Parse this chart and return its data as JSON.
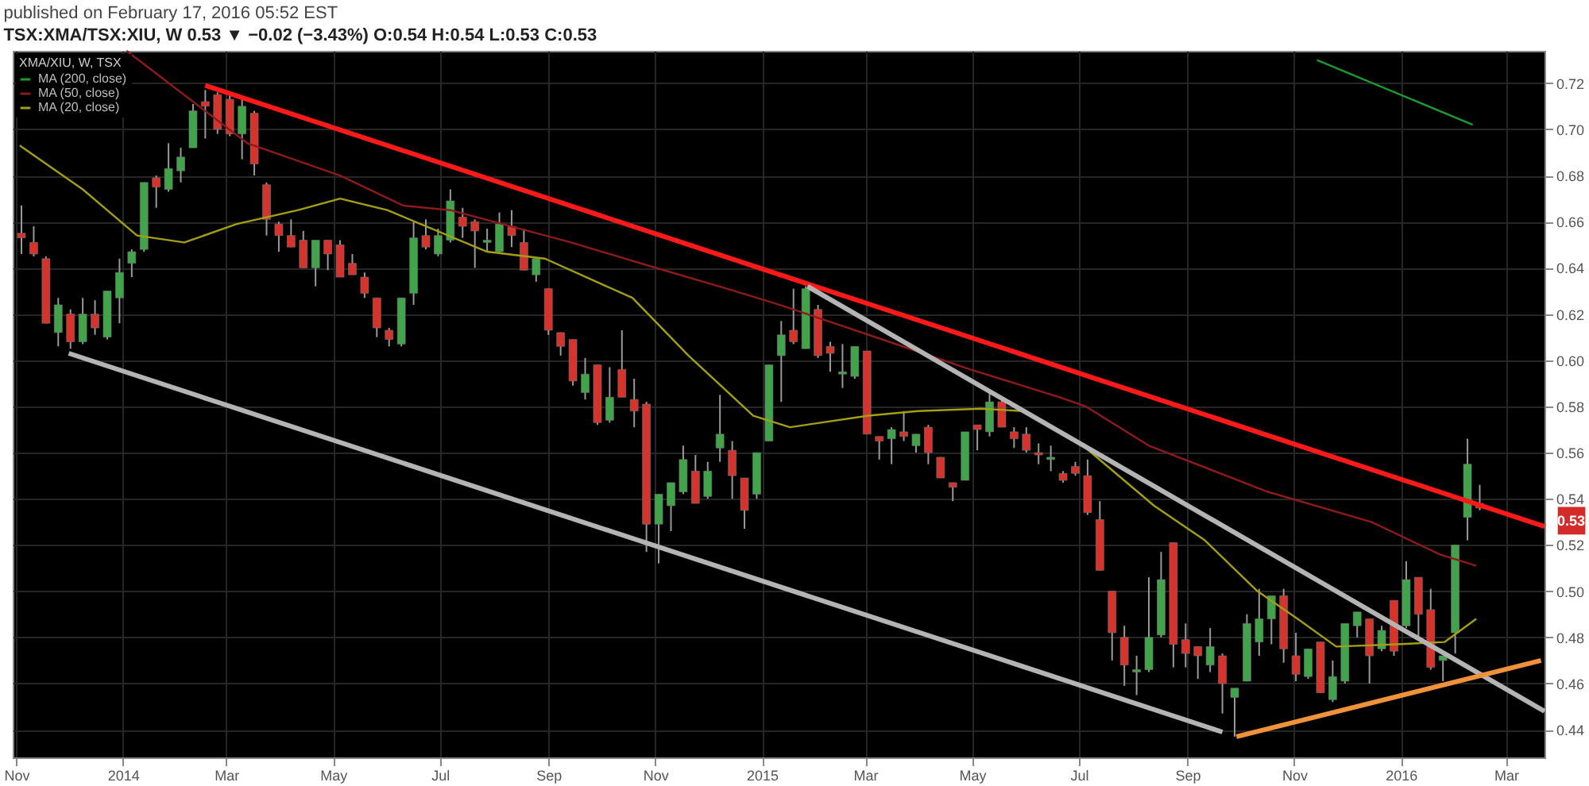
{
  "chart_data": {
    "type": "candlestick",
    "title": "published on February 17, 2016 05:52 EST",
    "subtitle": "TSX:XMA/TSX:XIU, W  0.53 ▼ −0.02 (−3.43%)  O:0.54 H:0.54 L:0.53 C:0.53",
    "legend_title": "XMA/XIU, W, TSX",
    "legend": "top left",
    "grid": true,
    "x": [
      "2013-11-04",
      "2013-11-11",
      "2013-11-18",
      "2013-11-25",
      "2013-12-02",
      "2013-12-09",
      "2013-12-16",
      "2013-12-23",
      "2013-12-30",
      "2014-01-06",
      "2014-01-13",
      "2014-01-20",
      "2014-01-27",
      "2014-02-03",
      "2014-02-10",
      "2014-02-17",
      "2014-02-24",
      "2014-03-03",
      "2014-03-10",
      "2014-03-17",
      "2014-03-24",
      "2014-03-31",
      "2014-04-07",
      "2014-04-14",
      "2014-04-21",
      "2014-04-28",
      "2014-05-05",
      "2014-05-12",
      "2014-05-19",
      "2014-05-26",
      "2014-06-02",
      "2014-06-09",
      "2014-06-16",
      "2014-06-23",
      "2014-06-30",
      "2014-07-07",
      "2014-07-14",
      "2014-07-21",
      "2014-07-28",
      "2014-08-04",
      "2014-08-11",
      "2014-08-18",
      "2014-08-25",
      "2014-09-01",
      "2014-09-08",
      "2014-09-15",
      "2014-09-22",
      "2014-09-29",
      "2014-10-06",
      "2014-10-13",
      "2014-10-20",
      "2014-10-27",
      "2014-11-03",
      "2014-11-10",
      "2014-11-17",
      "2014-11-24",
      "2014-12-01",
      "2014-12-08",
      "2014-12-15",
      "2014-12-22",
      "2014-12-29",
      "2015-01-05",
      "2015-01-12",
      "2015-01-19",
      "2015-01-26",
      "2015-02-02",
      "2015-02-09",
      "2015-02-16",
      "2015-02-23",
      "2015-03-02",
      "2015-03-09",
      "2015-03-16",
      "2015-03-23",
      "2015-03-30",
      "2015-04-06",
      "2015-04-13",
      "2015-04-20",
      "2015-04-27",
      "2015-05-04",
      "2015-05-11",
      "2015-05-18",
      "2015-05-25",
      "2015-06-01",
      "2015-06-08",
      "2015-06-15",
      "2015-06-22",
      "2015-06-29",
      "2015-07-06",
      "2015-07-13",
      "2015-07-20",
      "2015-07-27",
      "2015-08-03",
      "2015-08-10",
      "2015-08-17",
      "2015-08-24",
      "2015-08-31",
      "2015-09-07",
      "2015-09-14",
      "2015-09-21",
      "2015-09-28",
      "2015-10-05",
      "2015-10-12",
      "2015-10-19",
      "2015-10-26",
      "2015-11-02",
      "2015-11-09",
      "2015-11-16",
      "2015-11-23",
      "2015-11-30",
      "2015-12-07",
      "2015-12-14",
      "2015-12-21",
      "2015-12-28",
      "2016-01-04",
      "2016-01-11",
      "2016-01-18",
      "2016-01-25",
      "2016-02-01",
      "2016-02-08",
      "2016-02-15"
    ],
    "ohlc": [
      [
        0.655,
        0.667,
        0.646,
        0.653
      ],
      [
        0.651,
        0.658,
        0.645,
        0.646
      ],
      [
        0.644,
        0.645,
        0.616,
        0.616
      ],
      [
        0.612,
        0.627,
        0.606,
        0.624
      ],
      [
        0.62,
        0.622,
        0.605,
        0.608
      ],
      [
        0.608,
        0.627,
        0.607,
        0.62
      ],
      [
        0.62,
        0.626,
        0.611,
        0.614
      ],
      [
        0.61,
        0.63,
        0.609,
        0.63
      ],
      [
        0.627,
        0.644,
        0.616,
        0.638
      ],
      [
        0.642,
        0.648,
        0.636,
        0.647
      ],
      [
        0.648,
        0.677,
        0.647,
        0.677
      ],
      [
        0.679,
        0.68,
        0.666,
        0.675
      ],
      [
        0.674,
        0.694,
        0.673,
        0.683
      ],
      [
        0.682,
        0.692,
        0.677,
        0.688
      ],
      [
        0.692,
        0.711,
        0.692,
        0.708
      ],
      [
        0.712,
        0.717,
        0.696,
        0.71
      ],
      [
        0.715,
        0.716,
        0.698,
        0.7
      ],
      [
        0.713,
        0.715,
        0.697,
        0.698
      ],
      [
        0.698,
        0.714,
        0.687,
        0.71
      ],
      [
        0.707,
        0.708,
        0.68,
        0.685
      ],
      [
        0.676,
        0.677,
        0.654,
        0.661
      ],
      [
        0.659,
        0.66,
        0.647,
        0.654
      ],
      [
        0.654,
        0.661,
        0.649,
        0.649
      ],
      [
        0.652,
        0.656,
        0.64,
        0.64
      ],
      [
        0.64,
        0.652,
        0.632,
        0.652
      ],
      [
        0.652,
        0.652,
        0.639,
        0.646
      ],
      [
        0.65,
        0.652,
        0.636,
        0.636
      ],
      [
        0.642,
        0.646,
        0.637,
        0.637
      ],
      [
        0.636,
        0.638,
        0.627,
        0.629
      ],
      [
        0.627,
        0.627,
        0.61,
        0.614
      ],
      [
        0.613,
        0.614,
        0.606,
        0.609
      ],
      [
        0.607,
        0.627,
        0.606,
        0.627
      ],
      [
        0.629,
        0.66,
        0.624,
        0.653
      ],
      [
        0.654,
        0.661,
        0.648,
        0.649
      ],
      [
        0.646,
        0.657,
        0.645,
        0.654
      ],
      [
        0.652,
        0.674,
        0.651,
        0.669
      ],
      [
        0.662,
        0.666,
        0.653,
        0.658
      ],
      [
        0.66,
        0.661,
        0.64,
        0.656
      ],
      [
        0.651,
        0.657,
        0.647,
        0.652
      ],
      [
        0.647,
        0.664,
        0.646,
        0.659
      ],
      [
        0.658,
        0.665,
        0.649,
        0.654
      ],
      [
        0.651,
        0.657,
        0.639,
        0.639
      ],
      [
        0.637,
        0.644,
        0.634,
        0.644
      ],
      [
        0.631,
        0.631,
        0.611,
        0.613
      ],
      [
        0.612,
        0.612,
        0.602,
        0.606
      ],
      [
        0.609,
        0.609,
        0.589,
        0.591
      ],
      [
        0.586,
        0.601,
        0.583,
        0.594
      ],
      [
        0.598,
        0.598,
        0.572,
        0.573
      ],
      [
        0.574,
        0.597,
        0.573,
        0.584
      ],
      [
        0.596,
        0.613,
        0.584,
        0.584
      ],
      [
        0.583,
        0.592,
        0.571,
        0.578
      ],
      [
        0.581,
        0.582,
        0.517,
        0.529
      ],
      [
        0.529,
        0.542,
        0.512,
        0.542
      ],
      [
        0.537,
        0.547,
        0.526,
        0.547
      ],
      [
        0.543,
        0.563,
        0.542,
        0.557
      ],
      [
        0.552,
        0.559,
        0.538,
        0.538
      ],
      [
        0.541,
        0.556,
        0.54,
        0.552
      ],
      [
        0.562,
        0.585,
        0.556,
        0.568
      ],
      [
        0.561,
        0.565,
        0.54,
        0.55
      ],
      [
        0.549,
        0.549,
        0.527,
        0.535
      ],
      [
        0.542,
        0.56,
        0.54,
        0.56
      ],
      [
        0.565,
        0.598,
        0.565,
        0.598
      ],
      [
        0.602,
        0.617,
        0.582,
        0.611
      ],
      [
        0.613,
        0.631,
        0.607,
        0.608
      ],
      [
        0.605,
        0.632,
        0.605,
        0.631
      ],
      [
        0.622,
        0.624,
        0.601,
        0.602
      ],
      [
        0.606,
        0.608,
        0.595,
        0.603
      ],
      [
        0.594,
        0.607,
        0.588,
        0.595
      ],
      [
        0.593,
        0.606,
        0.592,
        0.606
      ],
      [
        0.604,
        0.604,
        0.568,
        0.568
      ],
      [
        0.567,
        0.567,
        0.557,
        0.565
      ],
      [
        0.566,
        0.571,
        0.555,
        0.57
      ],
      [
        0.569,
        0.578,
        0.565,
        0.567
      ],
      [
        0.563,
        0.568,
        0.56,
        0.568
      ],
      [
        0.571,
        0.572,
        0.555,
        0.56
      ],
      [
        0.558,
        0.558,
        0.549,
        0.549
      ],
      [
        0.547,
        0.547,
        0.539,
        0.545
      ],
      [
        0.548,
        0.569,
        0.548,
        0.569
      ],
      [
        0.572,
        0.572,
        0.561,
        0.57
      ],
      [
        0.569,
        0.586,
        0.567,
        0.582
      ],
      [
        0.582,
        0.584,
        0.571,
        0.571
      ],
      [
        0.569,
        0.571,
        0.562,
        0.566
      ],
      [
        0.568,
        0.571,
        0.56,
        0.561
      ],
      [
        0.56,
        0.564,
        0.555,
        0.559
      ],
      [
        0.557,
        0.563,
        0.552,
        0.558
      ],
      [
        0.551,
        0.552,
        0.547,
        0.548
      ],
      [
        0.554,
        0.556,
        0.55,
        0.551
      ],
      [
        0.55,
        0.557,
        0.533,
        0.534
      ],
      [
        0.531,
        0.539,
        0.509,
        0.509
      ],
      [
        0.5,
        0.5,
        0.47,
        0.482
      ],
      [
        0.48,
        0.485,
        0.459,
        0.468
      ],
      [
        0.465,
        0.472,
        0.455,
        0.466
      ],
      [
        0.466,
        0.506,
        0.465,
        0.48
      ],
      [
        0.481,
        0.517,
        0.48,
        0.505
      ],
      [
        0.521,
        0.521,
        0.467,
        0.477
      ],
      [
        0.479,
        0.486,
        0.467,
        0.473
      ],
      [
        0.476,
        0.476,
        0.462,
        0.472
      ],
      [
        0.468,
        0.484,
        0.465,
        0.476
      ],
      [
        0.472,
        0.473,
        0.447,
        0.46
      ],
      [
        0.454,
        0.458,
        0.437,
        0.458
      ],
      [
        0.461,
        0.49,
        0.461,
        0.486
      ],
      [
        0.478,
        0.501,
        0.472,
        0.488
      ],
      [
        0.488,
        0.498,
        0.477,
        0.498
      ],
      [
        0.498,
        0.501,
        0.469,
        0.475
      ],
      [
        0.472,
        0.482,
        0.461,
        0.464
      ],
      [
        0.463,
        0.475,
        0.462,
        0.475
      ],
      [
        0.478,
        0.478,
        0.456,
        0.456
      ],
      [
        0.453,
        0.47,
        0.452,
        0.463
      ],
      [
        0.461,
        0.486,
        0.46,
        0.486
      ],
      [
        0.485,
        0.491,
        0.48,
        0.491
      ],
      [
        0.488,
        0.488,
        0.46,
        0.472
      ],
      [
        0.475,
        0.485,
        0.474,
        0.483
      ],
      [
        0.496,
        0.496,
        0.472,
        0.474
      ],
      [
        0.485,
        0.513,
        0.484,
        0.505
      ],
      [
        0.506,
        0.506,
        0.48,
        0.49
      ],
      [
        0.492,
        0.501,
        0.466,
        0.467
      ],
      [
        0.47,
        0.472,
        0.461,
        0.472
      ],
      [
        0.482,
        0.52,
        0.473,
        0.52
      ],
      [
        0.532,
        0.566,
        0.522,
        0.555
      ],
      [
        0.538,
        0.546,
        0.535,
        0.536
      ]
    ],
    "colors": [
      "#d5332c",
      "#d5332c",
      "#d5332c",
      "#41a34a",
      "#d5332c",
      "#41a34a",
      "#d5332c",
      "#41a34a",
      "#41a34a",
      "#41a34a",
      "#41a34a",
      "#d5332c",
      "#41a34a",
      "#41a34a",
      "#41a34a",
      "#d5332c",
      "#d5332c",
      "#d5332c",
      "#41a34a",
      "#d5332c",
      "#d5332c",
      "#d5332c",
      "#d5332c",
      "#d5332c",
      "#41a34a",
      "#d5332c",
      "#d5332c",
      "#d5332c",
      "#d5332c",
      "#d5332c",
      "#d5332c",
      "#41a34a",
      "#41a34a",
      "#d5332c",
      "#41a34a",
      "#41a34a",
      "#d5332c",
      "#d5332c",
      "#41a34a",
      "#41a34a",
      "#d5332c",
      "#d5332c",
      "#41a34a",
      "#d5332c",
      "#d5332c",
      "#d5332c",
      "#41a34a",
      "#d5332c",
      "#41a34a",
      "#d5332c",
      "#d5332c",
      "#d5332c",
      "#41a34a",
      "#41a34a",
      "#41a34a",
      "#d5332c",
      "#41a34a",
      "#41a34a",
      "#d5332c",
      "#d5332c",
      "#41a34a",
      "#41a34a",
      "#41a34a",
      "#d5332c",
      "#41a34a",
      "#d5332c",
      "#d5332c",
      "#41a34a",
      "#41a34a",
      "#d5332c",
      "#d5332c",
      "#41a34a",
      "#d5332c",
      "#41a34a",
      "#d5332c",
      "#d5332c",
      "#d5332c",
      "#41a34a",
      "#d5332c",
      "#41a34a",
      "#d5332c",
      "#d5332c",
      "#d5332c",
      "#d5332c",
      "#41a34a",
      "#d5332c",
      "#d5332c",
      "#d5332c",
      "#d5332c",
      "#d5332c",
      "#d5332c",
      "#41a34a",
      "#41a34a",
      "#41a34a",
      "#d5332c",
      "#d5332c",
      "#d5332c",
      "#41a34a",
      "#d5332c",
      "#41a34a",
      "#41a34a",
      "#41a34a",
      "#41a34a",
      "#d5332c",
      "#d5332c",
      "#41a34a",
      "#d5332c",
      "#41a34a",
      "#41a34a",
      "#41a34a",
      "#d5332c",
      "#41a34a",
      "#d5332c",
      "#41a34a",
      "#d5332c",
      "#d5332c",
      "#41a34a",
      "#41a34a",
      "#41a34a",
      "#d5332c"
    ],
    "series": [
      {
        "name": "MA (200, close)",
        "type": "line",
        "color": "#1f9a2e",
        "x": [
          "2015-11-14",
          "2016-02-11"
        ],
        "values": [
          0.73,
          0.702
        ]
      },
      {
        "name": "MA (50, close)",
        "type": "line",
        "color": "#8e1b1b",
        "x": [
          "2014-01-03",
          "2014-03-13",
          "2014-05-05",
          "2014-06-10",
          "2014-07-07",
          "2014-09-14",
          "2014-10-28",
          "2014-12-12",
          "2015-01-11",
          "2015-03-03",
          "2015-04-30",
          "2015-06-20",
          "2015-07-05",
          "2015-08-10",
          "2015-10-17",
          "2015-12-15",
          "2016-01-23",
          "2016-02-13"
        ],
        "values": [
          0.734,
          0.694,
          0.68,
          0.667,
          0.665,
          0.651,
          0.641,
          0.631,
          0.624,
          0.611,
          0.596,
          0.584,
          0.58,
          0.563,
          0.543,
          0.53,
          0.516,
          0.511
        ]
      },
      {
        "name": "MA (20, close)",
        "type": "line",
        "color": "#a39f14",
        "x": [
          "2013-11-03",
          "2013-12-09",
          "2014-01-09",
          "2014-02-05",
          "2014-03-07",
          "2014-04-11",
          "2014-05-05",
          "2014-06-01",
          "2014-07-28",
          "2014-08-30",
          "2014-10-19",
          "2014-11-20",
          "2014-12-27",
          "2015-01-17",
          "2015-03-03",
          "2015-03-31",
          "2015-05-06",
          "2015-05-30",
          "2015-07-05",
          "2015-08-13",
          "2015-09-11",
          "2015-10-11",
          "2015-11-03",
          "2015-11-25",
          "2015-12-30",
          "2016-01-26",
          "2016-02-13"
        ],
        "values": [
          0.693,
          0.674,
          0.654,
          0.651,
          0.659,
          0.665,
          0.67,
          0.665,
          0.647,
          0.644,
          0.627,
          0.602,
          0.576,
          0.571,
          0.576,
          0.578,
          0.579,
          0.578,
          0.562,
          0.537,
          0.522,
          0.5,
          0.488,
          0.476,
          0.477,
          0.478,
          0.488
        ]
      },
      {
        "type": "line",
        "color": "#ff1a1a",
        "x": [
          "2014-02-17",
          "2016-03-23"
        ],
        "values": [
          0.719,
          0.528
        ]
      },
      {
        "type": "line",
        "color": "#b4b4b4",
        "x": [
          "2013-12-01",
          "2015-09-21"
        ],
        "values": [
          0.603,
          0.439
        ]
      },
      {
        "type": "line",
        "color": "#b4b4b4",
        "x": [
          "2015-01-27",
          "2016-03-23"
        ],
        "values": [
          0.632,
          0.448
        ]
      },
      {
        "type": "line",
        "color": "#f0923a",
        "x": [
          "2015-09-29",
          "2016-03-21"
        ],
        "values": [
          0.437,
          0.47
        ]
      }
    ],
    "annotations": [
      "0.53"
    ],
    "xlim": [
      "2013-10-30",
      "2016-03-23"
    ],
    "xticks": [
      {
        "value": "2013-11-01",
        "label": "Nov"
      },
      {
        "value": "2014-01-01",
        "label": "2014"
      },
      {
        "value": "2014-03-01",
        "label": "Mar"
      },
      {
        "value": "2014-05-01",
        "label": "May"
      },
      {
        "value": "2014-07-01",
        "label": "Jul"
      },
      {
        "value": "2014-09-01",
        "label": "Sep"
      },
      {
        "value": "2014-11-01",
        "label": "Nov"
      },
      {
        "value": "2015-01-01",
        "label": "2015"
      },
      {
        "value": "2015-03-01",
        "label": "Mar"
      },
      {
        "value": "2015-05-01",
        "label": "May"
      },
      {
        "value": "2015-07-01",
        "label": "Jul"
      },
      {
        "value": "2015-09-01",
        "label": "Sep"
      },
      {
        "value": "2015-11-01",
        "label": "Nov"
      },
      {
        "value": "2016-01-01",
        "label": "2016"
      },
      {
        "value": "2016-03-01",
        "label": "Mar"
      }
    ],
    "ylim": [
      0.428,
      0.734
    ],
    "yticks": [
      0.44,
      0.46,
      0.48,
      {
        "value": 0.5,
        "label": "0.50"
      },
      0.52,
      0.54,
      0.56,
      0.58,
      {
        "value": 0.6,
        "label": "0.60"
      },
      0.62,
      0.64,
      0.66,
      0.68,
      {
        "value": 0.7,
        "label": "0.70"
      },
      0.72
    ]
  }
}
